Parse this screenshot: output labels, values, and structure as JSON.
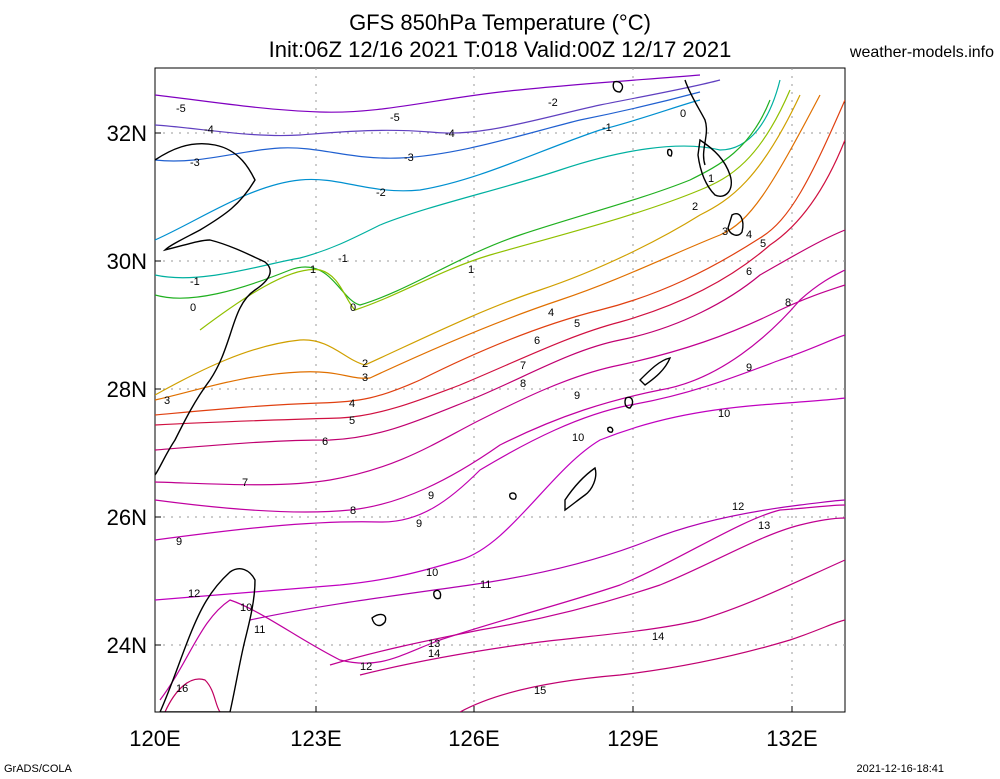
{
  "title": {
    "line1": "GFS 850hPa Temperature (°C)",
    "line2": "Init:06Z 12/16 2021 T:018 Valid:00Z 12/17 2021"
  },
  "site_label": "weather-models.info",
  "footer": {
    "left": "GrADS/COLA",
    "right": "2021-12-16-18:41"
  },
  "axes": {
    "lon_ticks": [
      "120E",
      "123E",
      "126E",
      "129E",
      "132E"
    ],
    "lat_ticks": [
      "32N",
      "30N",
      "28N",
      "26N",
      "24N"
    ]
  },
  "contours": [
    {
      "level": -5,
      "color": "#8000c0"
    },
    {
      "level": -4,
      "color": "#6040c0"
    },
    {
      "level": -3,
      "color": "#2060d0"
    },
    {
      "level": -2,
      "color": "#0090d0"
    },
    {
      "level": -1,
      "color": "#00b0a0"
    },
    {
      "level": 0,
      "color": "#20b020"
    },
    {
      "level": 1,
      "color": "#90c000"
    },
    {
      "level": 2,
      "color": "#d0a000"
    },
    {
      "level": 3,
      "color": "#e07000"
    },
    {
      "level": 4,
      "color": "#e04010"
    },
    {
      "level": 5,
      "color": "#d01040"
    },
    {
      "level": 6,
      "color": "#c00070"
    },
    {
      "level": 7,
      "color": "#c00090"
    },
    {
      "level": 8,
      "color": "#c000a0"
    },
    {
      "level": 9,
      "color": "#c000b0"
    },
    {
      "level": 10,
      "color": "#c000c0"
    },
    {
      "level": 11,
      "color": "#b000b0"
    },
    {
      "level": 12,
      "color": "#c000a0"
    },
    {
      "level": 13,
      "color": "#c00090"
    },
    {
      "level": 14,
      "color": "#c00080"
    },
    {
      "level": 15,
      "color": "#c00070"
    },
    {
      "level": 16,
      "color": "#c00060"
    }
  ],
  "contour_labels": [
    "-5",
    "-4",
    "-3",
    "-2",
    "-1",
    "0",
    "1",
    "2",
    "3",
    "4",
    "5",
    "6",
    "7",
    "8",
    "9",
    "10",
    "11",
    "12",
    "13",
    "14",
    "15",
    "16"
  ]
}
